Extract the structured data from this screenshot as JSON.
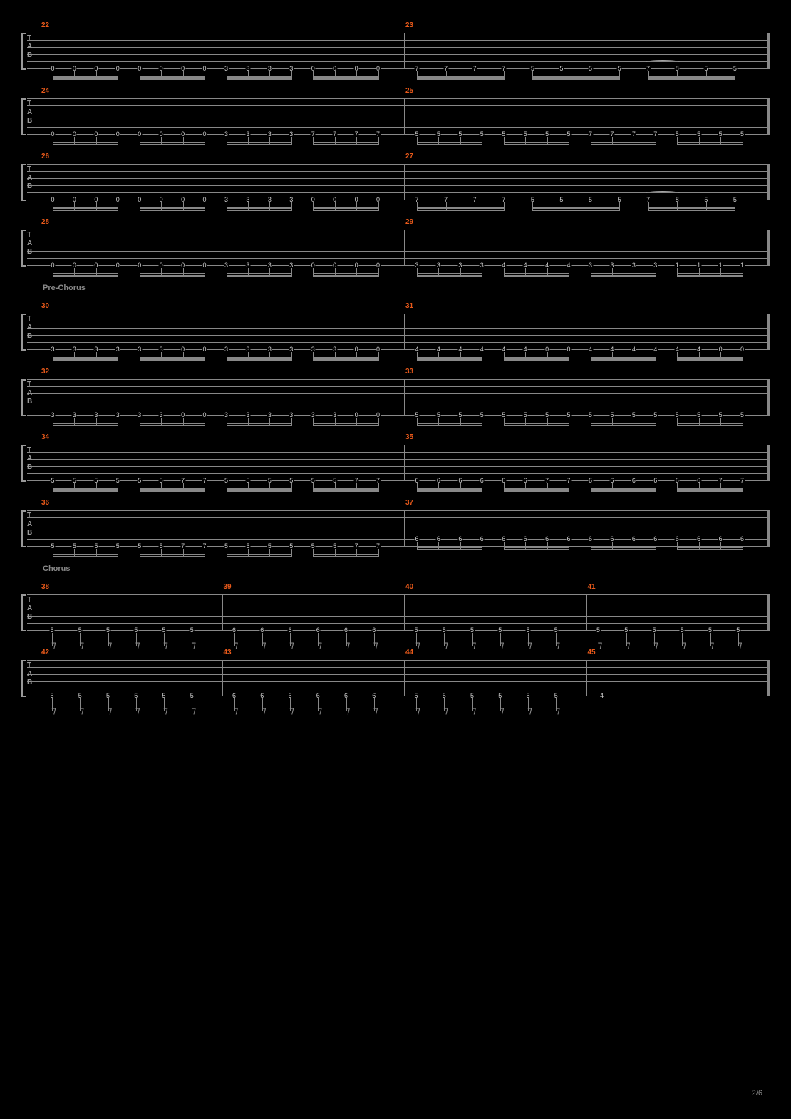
{
  "page_num": "2/6",
  "colors": {
    "measure_num": "#e8591a",
    "section": "#888888",
    "note": "#cccccc",
    "line": "#888888"
  },
  "string_line": 5,
  "systems": [
    {
      "measures": [
        {
          "num": "22",
          "notes_per_group": 4,
          "groups": 4,
          "frets": [
            "0",
            "0",
            "0",
            "0",
            "0",
            "0",
            "0",
            "0",
            "3",
            "3",
            "3",
            "3",
            "0",
            "0",
            "0",
            "0"
          ],
          "string": 5
        },
        {
          "num": "23",
          "groups": 4,
          "pattern": "b",
          "frets": [
            "7",
            "7",
            "7",
            "7",
            "5",
            "5",
            "5",
            "5",
            "7",
            "8",
            "5",
            "5"
          ],
          "tie": true,
          "string": 5
        }
      ]
    },
    {
      "measures": [
        {
          "num": "24",
          "groups": 4,
          "frets": [
            "0",
            "0",
            "0",
            "0",
            "0",
            "0",
            "0",
            "0",
            "3",
            "3",
            "3",
            "3",
            "7",
            "7",
            "7",
            "7"
          ],
          "string": 5
        },
        {
          "num": "25",
          "groups": 4,
          "frets": [
            "5",
            "5",
            "5",
            "5",
            "5",
            "5",
            "5",
            "5",
            "7",
            "7",
            "7",
            "7",
            "5",
            "5",
            "5",
            "5"
          ],
          "string": 5
        }
      ]
    },
    {
      "measures": [
        {
          "num": "26",
          "groups": 4,
          "frets": [
            "0",
            "0",
            "0",
            "0",
            "0",
            "0",
            "0",
            "0",
            "3",
            "3",
            "3",
            "3",
            "0",
            "0",
            "0",
            "0"
          ],
          "string": 5
        },
        {
          "num": "27",
          "groups": 4,
          "pattern": "b",
          "frets": [
            "7",
            "7",
            "7",
            "7",
            "5",
            "5",
            "5",
            "5",
            "7",
            "8",
            "5",
            "5"
          ],
          "tie": true,
          "string": 5
        }
      ]
    },
    {
      "measures": [
        {
          "num": "28",
          "groups": 4,
          "frets": [
            "0",
            "0",
            "0",
            "0",
            "0",
            "0",
            "0",
            "0",
            "3",
            "3",
            "3",
            "3",
            "0",
            "0",
            "0",
            "0"
          ],
          "string": 5
        },
        {
          "num": "29",
          "groups": 4,
          "frets": [
            "3",
            "3",
            "3",
            "3",
            "4",
            "4",
            "4",
            "4",
            "3",
            "3",
            "3",
            "3",
            "1",
            "1",
            "1",
            "1"
          ],
          "string": 5
        }
      ]
    },
    {
      "section": "Pre-Chorus"
    },
    {
      "measures": [
        {
          "num": "30",
          "groups": 4,
          "frets": [
            "3",
            "3",
            "3",
            "3",
            "3",
            "3",
            "0",
            "0",
            "3",
            "3",
            "3",
            "3",
            "3",
            "3",
            "0",
            "0"
          ],
          "string": 5
        },
        {
          "num": "31",
          "groups": 4,
          "frets": [
            "4",
            "4",
            "4",
            "4",
            "4",
            "4",
            "0",
            "0",
            "4",
            "4",
            "4",
            "4",
            "4",
            "4",
            "0",
            "0"
          ],
          "string": 5
        }
      ]
    },
    {
      "measures": [
        {
          "num": "32",
          "groups": 4,
          "frets": [
            "3",
            "3",
            "3",
            "3",
            "3",
            "3",
            "0",
            "0",
            "3",
            "3",
            "3",
            "3",
            "3",
            "3",
            "0",
            "0"
          ],
          "string": 5
        },
        {
          "num": "33",
          "groups": 4,
          "frets": [
            "5",
            "5",
            "5",
            "5",
            "5",
            "5",
            "5",
            "5",
            "5",
            "5",
            "5",
            "5",
            "5",
            "5",
            "5",
            "5"
          ],
          "string": 5
        }
      ]
    },
    {
      "measures": [
        {
          "num": "34",
          "groups": 4,
          "frets": [
            "5",
            "5",
            "5",
            "5",
            "5",
            "5",
            "7",
            "7",
            "5",
            "5",
            "5",
            "5",
            "5",
            "5",
            "7",
            "7"
          ],
          "string": 5
        },
        {
          "num": "35",
          "groups": 4,
          "frets": [
            "6",
            "6",
            "6",
            "6",
            "6",
            "6",
            "7",
            "7",
            "6",
            "6",
            "6",
            "6",
            "6",
            "6",
            "7",
            "7"
          ],
          "string": 5
        }
      ]
    },
    {
      "measures": [
        {
          "num": "36",
          "groups": 4,
          "frets": [
            "5",
            "5",
            "5",
            "5",
            "5",
            "5",
            "7",
            "7",
            "5",
            "5",
            "5",
            "5",
            "5",
            "5",
            "7",
            "7"
          ],
          "string": 5
        },
        {
          "num": "37",
          "groups": 4,
          "frets": [
            "6",
            "6",
            "6",
            "6",
            "6",
            "6",
            "6",
            "6",
            "6",
            "6",
            "6",
            "6",
            "6",
            "6",
            "6",
            "6"
          ],
          "string": 4
        }
      ]
    },
    {
      "section": "Chorus"
    },
    {
      "flag_style": true,
      "measures": [
        {
          "num": "38",
          "frets": [
            "5",
            "5",
            "5",
            "5",
            "5",
            "5"
          ],
          "string": 5
        },
        {
          "num": "39",
          "frets": [
            "6",
            "6",
            "6",
            "6",
            "6",
            "6"
          ],
          "string": 5
        },
        {
          "num": "40",
          "frets": [
            "5",
            "5",
            "5",
            "5",
            "5",
            "5"
          ],
          "string": 5
        },
        {
          "num": "41",
          "frets": [
            "5",
            "5",
            "5",
            "5",
            "5",
            "5"
          ],
          "string": 5
        }
      ]
    },
    {
      "flag_style": true,
      "measures": [
        {
          "num": "42",
          "frets": [
            "5",
            "5",
            "5",
            "5",
            "5",
            "5"
          ],
          "string": 5
        },
        {
          "num": "43",
          "frets": [
            "6",
            "6",
            "6",
            "6",
            "6",
            "6"
          ],
          "string": 5
        },
        {
          "num": "44",
          "frets": [
            "5",
            "5",
            "5",
            "5",
            "5",
            "5"
          ],
          "string": 5
        },
        {
          "num": "45",
          "frets": [
            "4"
          ],
          "string": 5,
          "whole": true
        }
      ]
    }
  ]
}
